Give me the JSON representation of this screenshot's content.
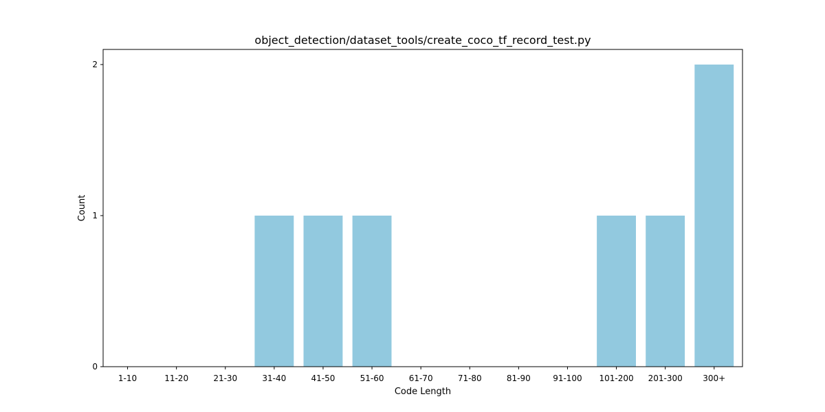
{
  "chart_data": {
    "type": "bar",
    "title": "object_detection/dataset_tools/create_coco_tf_record_test.py",
    "xlabel": "Code Length",
    "ylabel": "Count",
    "categories": [
      "1-10",
      "11-20",
      "21-30",
      "31-40",
      "41-50",
      "51-60",
      "61-70",
      "71-80",
      "81-90",
      "91-100",
      "101-200",
      "201-300",
      "300+"
    ],
    "values": [
      0,
      0,
      0,
      1,
      1,
      1,
      0,
      0,
      0,
      0,
      1,
      1,
      2
    ],
    "ylim": [
      0,
      2.1
    ],
    "yticks": [
      0,
      1,
      2
    ],
    "grid": false,
    "bar_color": "#92c9df"
  }
}
